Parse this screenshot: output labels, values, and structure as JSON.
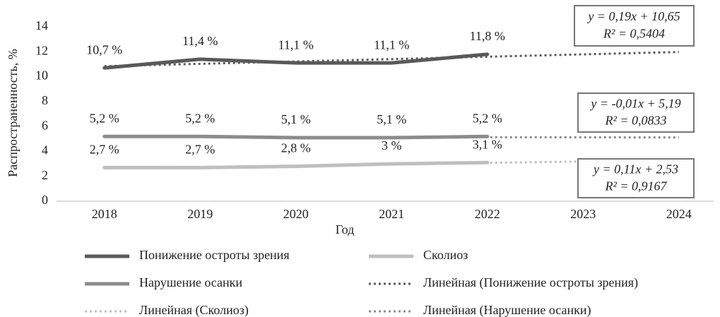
{
  "chart_data": {
    "type": "line",
    "y_label": "Распространенность, %",
    "x_label": "Год",
    "categories": [
      "2018",
      "2019",
      "2020",
      "2021",
      "2022",
      "2023",
      "2024"
    ],
    "ylim": [
      0,
      14
    ],
    "yticks": [
      0,
      2,
      4,
      6,
      8,
      10,
      12,
      14
    ],
    "series": [
      {
        "name": "Понижение остроты зрения",
        "color": "#595959",
        "line_style": "solid",
        "values": [
          10.7,
          11.4,
          11.1,
          11.1,
          11.8,
          null,
          null
        ],
        "value_labels": [
          "10,7 %",
          "11,4 %",
          "11,1 %",
          "11,1 %",
          "11,8 %",
          null,
          null
        ]
      },
      {
        "name": "Сколиоз",
        "color": "#bfbfbf",
        "line_style": "solid",
        "values": [
          2.7,
          2.7,
          2.8,
          3,
          3.1,
          null,
          null
        ],
        "value_labels": [
          "2,7 %",
          "2,7 %",
          "2,8 %",
          "3 %",
          "3,1 %",
          null,
          null
        ]
      },
      {
        "name": "Нарушение осанки",
        "color": "#8c8c8c",
        "line_style": "solid",
        "values": [
          5.2,
          5.2,
          5.1,
          5.1,
          5.2,
          null,
          null
        ],
        "value_labels": [
          "5,2 %",
          "5,2 %",
          "5,1 %",
          "5,1 %",
          "5,2 %",
          null,
          null
        ]
      },
      {
        "name": "Линейная (Понижение остроты зрения)",
        "color": "#595959",
        "line_style": "dotted",
        "values": [
          10.84,
          11.03,
          11.22,
          11.41,
          11.6,
          11.79,
          11.98
        ]
      },
      {
        "name": "Линейная (Сколиоз)",
        "color": "#bfbfbf",
        "line_style": "dotted",
        "values": [
          2.64,
          2.75,
          2.86,
          2.97,
          3.08,
          3.19,
          3.3
        ]
      },
      {
        "name": "Линейная (Нарушение осанки)",
        "color": "#8c8c8c",
        "line_style": "dotted",
        "values": [
          5.18,
          5.17,
          5.16,
          5.15,
          5.14,
          5.13,
          5.12
        ]
      }
    ],
    "annotations": [
      {
        "lines": [
          "y = 0,19x + 10,65",
          "R² = 0,5404"
        ]
      },
      {
        "lines": [
          "y = -0,01x + 5,19",
          "R² = 0,0833"
        ]
      },
      {
        "lines": [
          "y = 0,11x + 2,53",
          "R² = 0,9167"
        ]
      }
    ]
  }
}
